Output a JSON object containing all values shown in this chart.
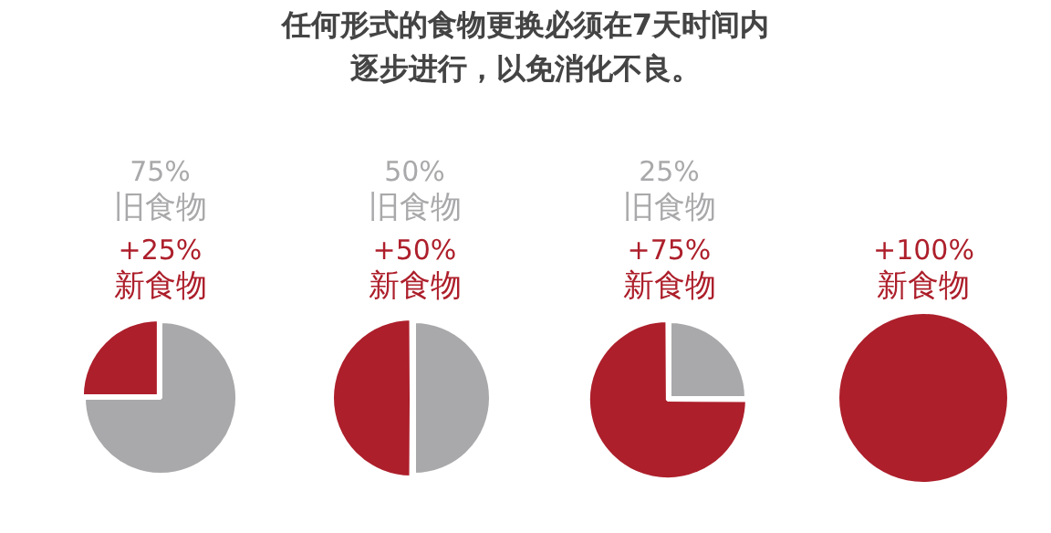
{
  "chart_data": [
    {
      "type": "pie",
      "title": "任何形式的食物更换必须在7天时间内逐步进行，以免消化不良。",
      "categories": [
        "旧食物",
        "新食物"
      ],
      "values": [
        75,
        25
      ],
      "colors": [
        "#a9a9ab",
        "#ad1f2b"
      ],
      "value_labels": [
        "75%",
        "+25%"
      ]
    },
    {
      "type": "pie",
      "categories": [
        "旧食物",
        "新食物"
      ],
      "values": [
        50,
        50
      ],
      "colors": [
        "#a9a9ab",
        "#ad1f2b"
      ],
      "value_labels": [
        "50%",
        "+50%"
      ]
    },
    {
      "type": "pie",
      "categories": [
        "旧食物",
        "新食物"
      ],
      "values": [
        25,
        75
      ],
      "colors": [
        "#a9a9ab",
        "#ad1f2b"
      ],
      "value_labels": [
        "25%",
        "+75%"
      ]
    },
    {
      "type": "pie",
      "categories": [
        "新食物"
      ],
      "values": [
        100
      ],
      "colors": [
        "#ad1f2b"
      ],
      "value_labels": [
        "+100%"
      ]
    }
  ]
}
